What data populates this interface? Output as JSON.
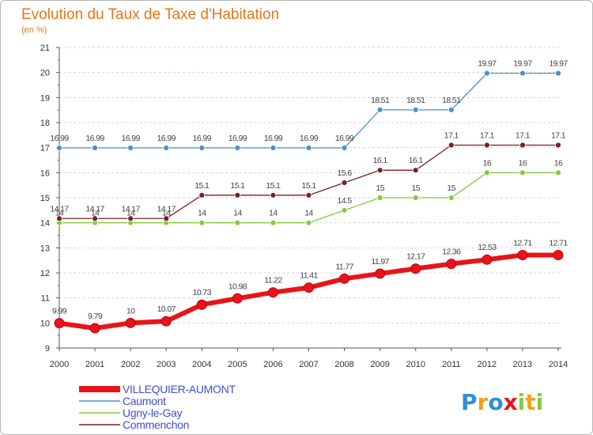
{
  "chart_data": {
    "type": "line",
    "title": "Evolution du Taux de Taxe d'Habitation",
    "subtitle": "(en %)",
    "xlabel": "",
    "ylabel": "",
    "ylim": [
      9,
      21
    ],
    "y_ticks": [
      "9",
      "10",
      "11",
      "12",
      "13",
      "14",
      "15",
      "16",
      "17",
      "18",
      "19",
      "20",
      "21"
    ],
    "grid": "horizontal dashed",
    "legend_position": "bottom-left",
    "categories": [
      "2000",
      "2001",
      "2002",
      "2003",
      "2004",
      "2005",
      "2006",
      "2007",
      "2008",
      "2009",
      "2010",
      "2011",
      "2012",
      "2013",
      "2014"
    ],
    "series": [
      {
        "name": "Caumont",
        "color": "#4a90d0",
        "values": [
          16.99,
          16.99,
          16.99,
          16.99,
          16.99,
          16.99,
          16.99,
          16.99,
          16.99,
          18.51,
          18.51,
          18.51,
          19.97,
          19.97,
          19.97
        ],
        "labels": [
          "16.99",
          "16.99",
          "16.99",
          "16.99",
          "16.99",
          "16.99",
          "16.99",
          "16.99",
          "16.99",
          "18.51",
          "18.51",
          "18.51",
          "19.97",
          "19.97",
          "19.97"
        ]
      },
      {
        "name": "Ugny-le-Gay",
        "color": "#80cc40",
        "values": [
          14,
          14,
          14,
          14,
          14,
          14,
          14,
          14,
          14.5,
          15,
          15,
          15,
          16,
          16,
          16
        ],
        "labels": [
          "14",
          "14",
          "14",
          "14",
          "14",
          "14",
          "14",
          "14",
          "14.5",
          "15",
          "15",
          "15",
          "16",
          "16",
          "16"
        ]
      },
      {
        "name": "Commenchon",
        "color": "#7a1f22",
        "values": [
          14.17,
          14.17,
          14.17,
          14.17,
          15.1,
          15.1,
          15.1,
          15.1,
          15.6,
          16.1,
          16.1,
          17.1,
          17.1,
          17.1,
          17.1
        ],
        "labels": [
          "14.17",
          "14.17",
          "14.17",
          "14.17",
          "15.1",
          "15.1",
          "15.1",
          "15.1",
          "15.6",
          "16.1",
          "16.1",
          "17.1",
          "17.1",
          "17.1",
          "17.1"
        ]
      },
      {
        "name": "VILLEQUIER-AUMONT",
        "color": "#e8141a",
        "values": [
          9.99,
          9.79,
          10,
          10.07,
          10.73,
          10.98,
          11.22,
          11.41,
          11.77,
          11.97,
          12.17,
          12.36,
          12.53,
          12.71,
          12.71
        ],
        "labels": [
          "9.99",
          "9.79",
          "10",
          "10.07",
          "10.73",
          "10.98",
          "11.22",
          "11.41",
          "11.77",
          "11.97",
          "12.17",
          "12.36",
          "12.53",
          "12.71",
          "12.71"
        ]
      }
    ],
    "legend": [
      "VILLEQUIER-AUMONT",
      "Caumont",
      "Ugny-le-Gay",
      "Commenchon"
    ]
  },
  "logo": {
    "letters": [
      "P",
      "r",
      "o",
      "x",
      "i",
      "t",
      "i"
    ]
  }
}
